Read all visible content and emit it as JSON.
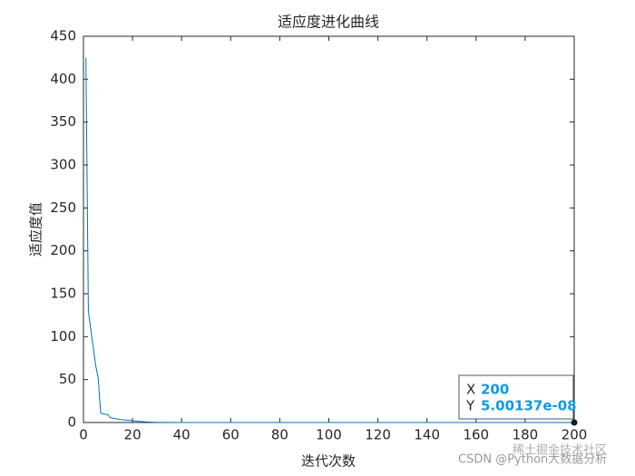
{
  "chart_data": {
    "type": "line",
    "title": "适应度进化曲线",
    "x_label": "迭代次数",
    "y_label": "适应度值",
    "x": [
      1,
      2,
      3,
      4,
      5,
      6,
      7,
      8,
      9,
      10,
      11,
      12,
      13,
      14,
      15,
      16,
      17,
      18,
      19,
      20,
      21,
      22,
      23,
      24,
      25,
      26,
      27,
      28,
      29,
      30,
      35,
      40,
      50,
      60,
      70,
      80,
      90,
      100,
      120,
      140,
      160,
      180,
      200
    ],
    "series": [
      {
        "color": "#0072bd",
        "values": [
          425,
          130,
          108,
          88,
          66,
          52,
          11,
          10,
          9.5,
          9,
          5.5,
          5,
          4.5,
          4,
          3.5,
          3,
          3,
          2.5,
          2.5,
          2,
          1.8,
          1.5,
          1.2,
          1,
          0.8,
          0.6,
          0.5,
          0.4,
          0.3,
          0.2,
          0.1,
          0.05,
          0.02,
          0.01,
          0.005,
          0.002,
          0.001,
          0.0005,
          0.0001,
          2e-05,
          5e-06,
          1e-06,
          5.00137e-08
        ]
      }
    ],
    "xlim": [
      0,
      200
    ],
    "xticks": [
      0,
      20,
      40,
      60,
      80,
      100,
      120,
      140,
      160,
      180,
      200
    ],
    "ylim": [
      0,
      450
    ],
    "yticks": [
      0,
      50,
      100,
      150,
      200,
      250,
      300,
      350,
      400,
      450
    ],
    "grid": false,
    "datatip": {
      "x_name": "X",
      "y_name": "Y",
      "x": 200,
      "y": {
        "value": 5.00137e-08,
        "label": "5.00137e-08"
      }
    }
  },
  "watermark": [
    "CSDN @Python大数据分析",
    "稀土掘金技术社区"
  ]
}
